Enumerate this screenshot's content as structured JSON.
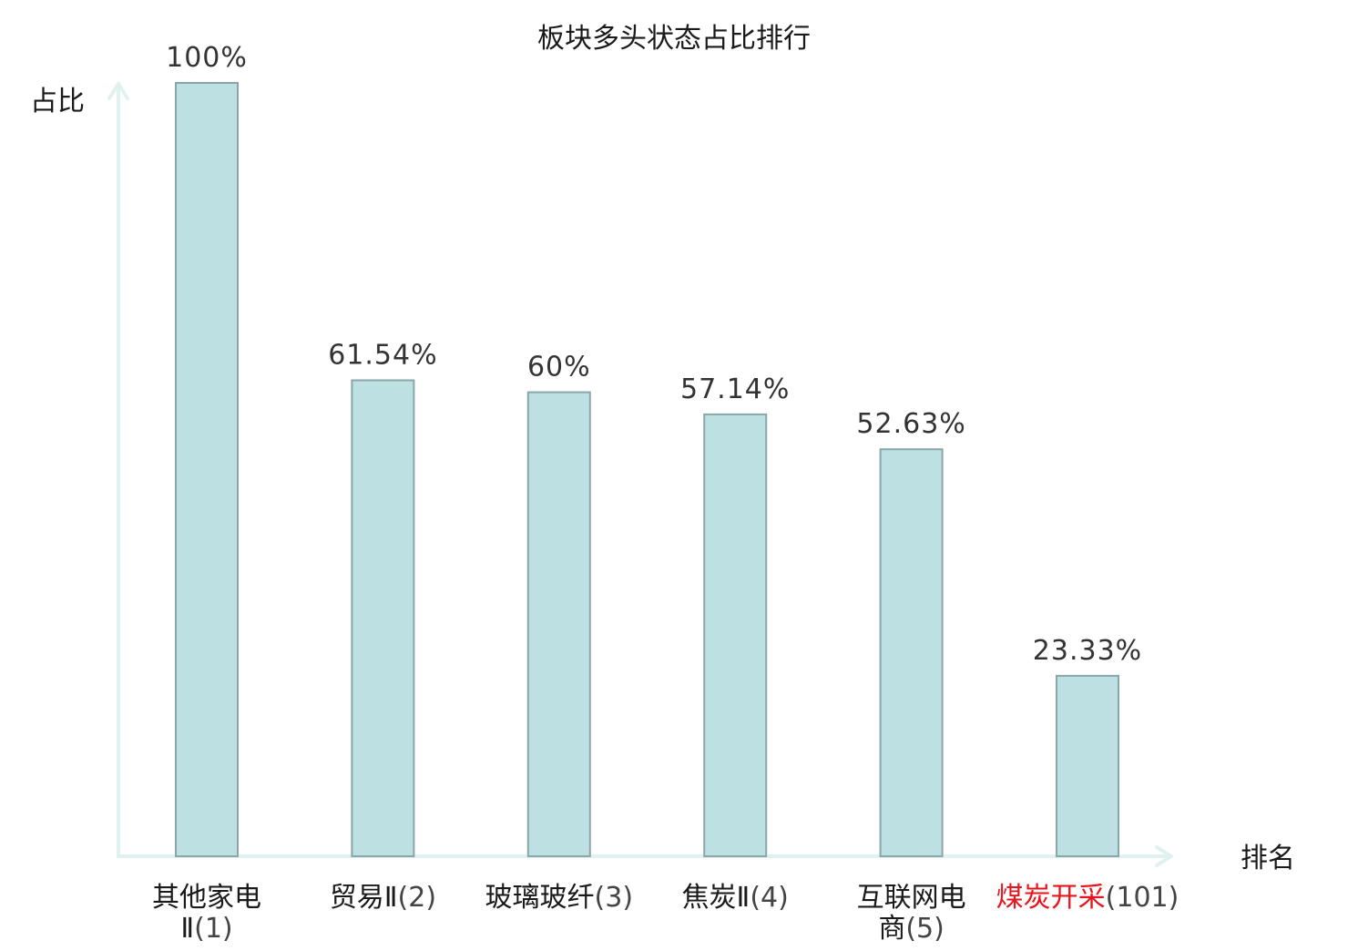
{
  "chart_data": {
    "type": "bar",
    "title": "板块多头状态占比排行",
    "xlabel": "排名",
    "ylabel": "占比",
    "ylim": [
      0,
      100
    ],
    "grid": false,
    "categories": [
      {
        "name": "其他家电Ⅱ",
        "rank": "(1)",
        "label_lines": [
          [
            "其他家电",
            ""
          ],
          [
            "Ⅱ",
            "(1)"
          ]
        ],
        "highlight": false
      },
      {
        "name": "贸易Ⅱ",
        "rank": "(2)",
        "label_lines": [
          [
            "贸易Ⅱ",
            "(2)"
          ]
        ],
        "highlight": false
      },
      {
        "name": "玻璃玻纤",
        "rank": "(3)",
        "label_lines": [
          [
            "玻璃玻纤",
            "(3)"
          ]
        ],
        "highlight": false
      },
      {
        "name": "焦炭Ⅱ",
        "rank": "(4)",
        "label_lines": [
          [
            "焦炭Ⅱ",
            "(4)"
          ]
        ],
        "highlight": false
      },
      {
        "name": "互联网电商",
        "rank": "(5)",
        "label_lines": [
          [
            "互联网电",
            ""
          ],
          [
            "商",
            "(5)"
          ]
        ],
        "highlight": false
      },
      {
        "name": "煤炭开采",
        "rank": "(101)",
        "label_lines": [
          [
            "煤炭开采",
            "(101)"
          ]
        ],
        "highlight": true
      }
    ],
    "values": [
      100,
      61.54,
      60,
      57.14,
      52.63,
      23.33
    ],
    "value_labels": [
      "100%",
      "61.54%",
      "60%",
      "57.14%",
      "52.63%",
      "23.33%"
    ],
    "colors": {
      "bar_fill": "#bde0e3",
      "bar_stroke": "#8aa6a9",
      "axis": "#dff2ef",
      "highlight_text": "#e8141b",
      "normal_text": "#1a1a1a"
    }
  }
}
